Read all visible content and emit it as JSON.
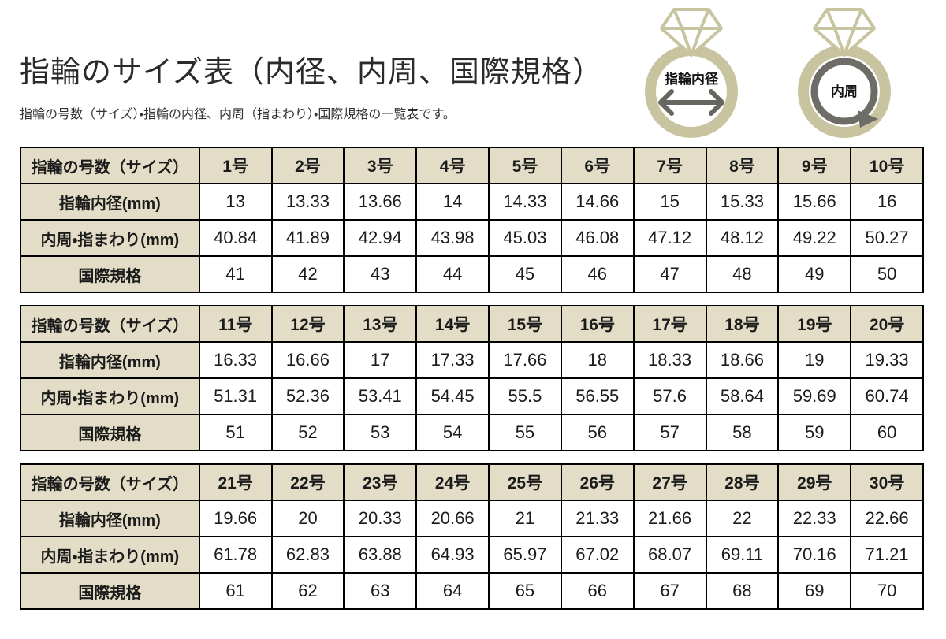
{
  "page": {
    "title": "指輪のサイズ表（内径、内周、国際規格）",
    "subtitle": "指輪の号数（サイズ）・指輪の内径、内周（指まわり）・国際規格の一覧表です。"
  },
  "illustration": {
    "left_ring_label": "指輪内径",
    "right_ring_label": "内周",
    "band_color": "#c8c4a0",
    "arrow_color": "#67655f"
  },
  "colors": {
    "header_bg": "#e3ddc7",
    "border": "#000000",
    "text": "#1b1b1b"
  },
  "row_labels": {
    "size": "指輪の号数（サイズ）",
    "diameter": "指輪内径(mm)",
    "circumference": "内周・指まわり(mm)",
    "international": "国際規格"
  },
  "tables": [
    {
      "sizes": [
        "1号",
        "2号",
        "3号",
        "4号",
        "5号",
        "6号",
        "7号",
        "8号",
        "9号",
        "10号"
      ],
      "diameters": [
        "13",
        "13.33",
        "13.66",
        "14",
        "14.33",
        "14.66",
        "15",
        "15.33",
        "15.66",
        "16"
      ],
      "circumferences": [
        "40.84",
        "41.89",
        "42.94",
        "43.98",
        "45.03",
        "46.08",
        "47.12",
        "48.12",
        "49.22",
        "50.27"
      ],
      "international": [
        "41",
        "42",
        "43",
        "44",
        "45",
        "46",
        "47",
        "48",
        "49",
        "50"
      ]
    },
    {
      "sizes": [
        "11号",
        "12号",
        "13号",
        "14号",
        "15号",
        "16号",
        "17号",
        "18号",
        "19号",
        "20号"
      ],
      "diameters": [
        "16.33",
        "16.66",
        "17",
        "17.33",
        "17.66",
        "18",
        "18.33",
        "18.66",
        "19",
        "19.33"
      ],
      "circumferences": [
        "51.31",
        "52.36",
        "53.41",
        "54.45",
        "55.5",
        "56.55",
        "57.6",
        "58.64",
        "59.69",
        "60.74"
      ],
      "international": [
        "51",
        "52",
        "53",
        "54",
        "55",
        "56",
        "57",
        "58",
        "59",
        "60"
      ]
    },
    {
      "sizes": [
        "21号",
        "22号",
        "23号",
        "24号",
        "25号",
        "26号",
        "27号",
        "28号",
        "29号",
        "30号"
      ],
      "diameters": [
        "19.66",
        "20",
        "20.33",
        "20.66",
        "21",
        "21.33",
        "21.66",
        "22",
        "22.33",
        "22.66"
      ],
      "circumferences": [
        "61.78",
        "62.83",
        "63.88",
        "64.93",
        "65.97",
        "67.02",
        "68.07",
        "69.11",
        "70.16",
        "71.21"
      ],
      "international": [
        "61",
        "62",
        "63",
        "64",
        "65",
        "66",
        "67",
        "68",
        "69",
        "70"
      ]
    }
  ]
}
